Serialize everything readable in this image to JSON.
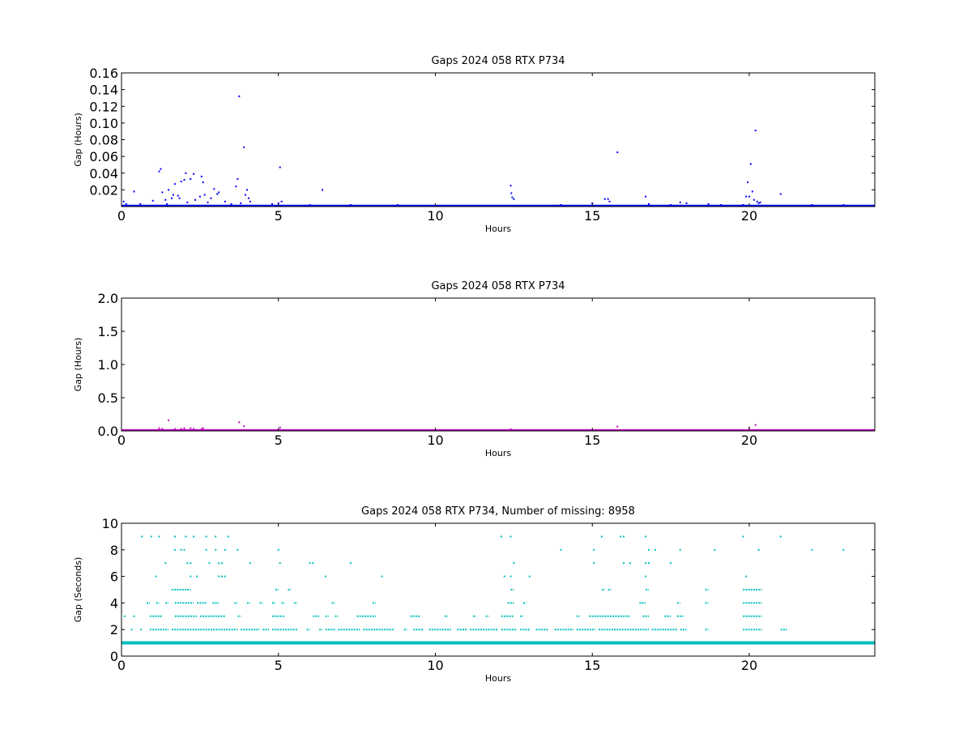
{
  "chart_data": [
    {
      "type": "scatter",
      "title": "Gaps 2024 058 RTX  P734",
      "xlabel": "Hours",
      "ylabel": "Gap (Hours)",
      "xlim": [
        0,
        24
      ],
      "ylim": [
        0,
        0.16
      ],
      "xticks": [
        "0",
        "5",
        "10",
        "15",
        "20"
      ],
      "yticks": [
        "0.02",
        "0.04",
        "0.06",
        "0.08",
        "0.10",
        "0.12",
        "0.14",
        "0.16"
      ],
      "ytick_values": [
        0.02,
        0.04,
        0.06,
        0.08,
        0.1,
        0.12,
        0.14,
        0.16
      ],
      "color": "#0000ff",
      "baseline": {
        "y": 0.0003,
        "x_from": 0,
        "x_to": 24
      },
      "points": [
        [
          0.07,
          0.006
        ],
        [
          0.15,
          0.003
        ],
        [
          0.4,
          0.018
        ],
        [
          0.6,
          0.003
        ],
        [
          1.0,
          0.007
        ],
        [
          1.2,
          0.042
        ],
        [
          1.25,
          0.045
        ],
        [
          1.3,
          0.017
        ],
        [
          1.4,
          0.008
        ],
        [
          1.45,
          0.003
        ],
        [
          1.5,
          0.02
        ],
        [
          1.6,
          0.01
        ],
        [
          1.65,
          0.014
        ],
        [
          1.7,
          0.027
        ],
        [
          1.8,
          0.013
        ],
        [
          1.85,
          0.01
        ],
        [
          1.9,
          0.03
        ],
        [
          2.0,
          0.032
        ],
        [
          2.05,
          0.04
        ],
        [
          2.1,
          0.005
        ],
        [
          2.2,
          0.033
        ],
        [
          2.3,
          0.039
        ],
        [
          2.35,
          0.008
        ],
        [
          2.5,
          0.012
        ],
        [
          2.55,
          0.036
        ],
        [
          2.6,
          0.029
        ],
        [
          2.65,
          0.014
        ],
        [
          2.75,
          0.005
        ],
        [
          2.85,
          0.01
        ],
        [
          2.95,
          0.021
        ],
        [
          3.05,
          0.015
        ],
        [
          3.1,
          0.017
        ],
        [
          3.3,
          0.006
        ],
        [
          3.5,
          0.003
        ],
        [
          3.65,
          0.024
        ],
        [
          3.7,
          0.033
        ],
        [
          3.75,
          0.132
        ],
        [
          3.8,
          0.004
        ],
        [
          3.9,
          0.071
        ],
        [
          3.95,
          0.014
        ],
        [
          4.0,
          0.02
        ],
        [
          4.05,
          0.01
        ],
        [
          4.1,
          0.006
        ],
        [
          4.8,
          0.003
        ],
        [
          5.0,
          0.004
        ],
        [
          5.05,
          0.047
        ],
        [
          5.1,
          0.006
        ],
        [
          6.0,
          0.002
        ],
        [
          6.4,
          0.02
        ],
        [
          7.3,
          0.002
        ],
        [
          8.8,
          0.002
        ],
        [
          12.4,
          0.025
        ],
        [
          12.42,
          0.016
        ],
        [
          12.45,
          0.011
        ],
        [
          12.5,
          0.009
        ],
        [
          14.0,
          0.002
        ],
        [
          15.0,
          0.004
        ],
        [
          15.4,
          0.009
        ],
        [
          15.5,
          0.009
        ],
        [
          15.55,
          0.006
        ],
        [
          15.8,
          0.065
        ],
        [
          16.7,
          0.012
        ],
        [
          16.8,
          0.003
        ],
        [
          17.5,
          0.002
        ],
        [
          17.8,
          0.005
        ],
        [
          18.0,
          0.004
        ],
        [
          18.7,
          0.003
        ],
        [
          19.1,
          0.002
        ],
        [
          19.8,
          0.002
        ],
        [
          19.9,
          0.012
        ],
        [
          19.95,
          0.029
        ],
        [
          20.0,
          0.012
        ],
        [
          20.05,
          0.051
        ],
        [
          20.1,
          0.018
        ],
        [
          20.15,
          0.008
        ],
        [
          20.2,
          0.091
        ],
        [
          20.25,
          0.006
        ],
        [
          20.3,
          0.004
        ],
        [
          20.35,
          0.005
        ],
        [
          21.0,
          0.015
        ],
        [
          22.0,
          0.002
        ],
        [
          23.0,
          0.002
        ]
      ]
    },
    {
      "type": "scatter",
      "title": "Gaps 2024 058 RTX  P734",
      "xlabel": "Hours",
      "ylabel": "Gap (Hours)",
      "xlim": [
        0,
        24
      ],
      "ylim": [
        0,
        2.0
      ],
      "xticks": [
        "0",
        "5",
        "10",
        "15",
        "20"
      ],
      "yticks": [
        "0.0",
        "0.5",
        "1.0",
        "1.5",
        "2.0"
      ],
      "ytick_values": [
        0,
        0.5,
        1.0,
        1.5,
        2.0
      ],
      "color": "#bf00bf",
      "baseline": {
        "y": 0.002,
        "x_from": 0,
        "x_to": 24
      },
      "points": [
        [
          1.2,
          0.04
        ],
        [
          1.3,
          0.03
        ],
        [
          1.5,
          0.16
        ],
        [
          1.7,
          0.03
        ],
        [
          1.9,
          0.03
        ],
        [
          2.0,
          0.04
        ],
        [
          2.2,
          0.04
        ],
        [
          2.3,
          0.03
        ],
        [
          2.55,
          0.03
        ],
        [
          2.6,
          0.04
        ],
        [
          3.75,
          0.13
        ],
        [
          3.9,
          0.07
        ],
        [
          5.05,
          0.05
        ],
        [
          12.4,
          0.025
        ],
        [
          15.8,
          0.065
        ],
        [
          20.0,
          0.05
        ],
        [
          20.2,
          0.09
        ]
      ]
    },
    {
      "type": "scatter",
      "title": "Gaps 2024 058 RTX  P734, Number of missing: 8958",
      "xlabel": "Hours",
      "ylabel": "Gap (Seconds)",
      "xlim": [
        0,
        24
      ],
      "ylim": [
        0,
        10
      ],
      "xticks": [
        "0",
        "5",
        "10",
        "15",
        "20"
      ],
      "yticks": [
        "0",
        "2",
        "4",
        "6",
        "8",
        "10"
      ],
      "ytick_values": [
        0,
        2,
        4,
        6,
        8,
        10
      ],
      "color": "#00bfbf",
      "baseline": {
        "y": 1,
        "x_from": 0,
        "x_to": 24
      },
      "row_segments": [
        {
          "y": 2,
          "segments": [
            [
              0.3,
              0.35
            ],
            [
              0.6,
              0.65
            ],
            [
              0.9,
              1.5
            ],
            [
              1.6,
              3.7
            ],
            [
              3.8,
              4.4
            ],
            [
              4.5,
              4.7
            ],
            [
              4.8,
              5.6
            ],
            [
              5.9,
              6.0
            ],
            [
              6.3,
              6.4
            ],
            [
              6.5,
              6.8
            ],
            [
              6.9,
              7.6
            ],
            [
              7.7,
              8.7
            ],
            [
              9.0,
              9.1
            ],
            [
              9.3,
              9.6
            ],
            [
              9.8,
              10.5
            ],
            [
              10.7,
              11.0
            ],
            [
              11.1,
              12.0
            ],
            [
              12.1,
              12.6
            ],
            [
              12.7,
              13.0
            ],
            [
              13.2,
              13.6
            ],
            [
              13.8,
              14.4
            ],
            [
              14.5,
              15.1
            ],
            [
              15.2,
              16.8
            ],
            [
              16.9,
              17.7
            ],
            [
              17.8,
              18.0
            ],
            [
              18.6,
              18.7
            ],
            [
              19.8,
              20.4
            ],
            [
              21.0,
              21.2
            ]
          ]
        },
        {
          "y": 3,
          "segments": [
            [
              0.9,
              1.3
            ],
            [
              1.7,
              2.4
            ],
            [
              2.5,
              3.3
            ],
            [
              3.7,
              3.8
            ],
            [
              4.8,
              5.2
            ],
            [
              6.1,
              6.3
            ],
            [
              6.5,
              6.6
            ],
            [
              6.8,
              6.9
            ],
            [
              7.5,
              8.1
            ],
            [
              9.2,
              9.5
            ],
            [
              10.3,
              10.4
            ],
            [
              11.2,
              11.3
            ],
            [
              11.6,
              11.7
            ],
            [
              12.1,
              12.5
            ],
            [
              12.7,
              12.8
            ],
            [
              14.5,
              14.6
            ],
            [
              14.9,
              16.2
            ],
            [
              16.6,
              16.8
            ],
            [
              17.3,
              17.5
            ],
            [
              17.7,
              17.9
            ],
            [
              19.8,
              20.4
            ]
          ]
        },
        {
          "y": 4,
          "segments": [
            [
              0.8,
              0.9
            ],
            [
              1.1,
              1.2
            ],
            [
              1.4,
              1.5
            ],
            [
              1.7,
              2.3
            ],
            [
              2.4,
              2.7
            ],
            [
              2.9,
              3.1
            ],
            [
              3.6,
              3.7
            ],
            [
              4.0,
              4.1
            ],
            [
              4.4,
              4.5
            ],
            [
              4.8,
              4.9
            ],
            [
              5.1,
              5.2
            ],
            [
              5.5,
              5.6
            ],
            [
              6.7,
              6.8
            ],
            [
              8.0,
              8.1
            ],
            [
              12.3,
              12.5
            ],
            [
              12.8,
              12.9
            ],
            [
              16.5,
              16.7
            ],
            [
              17.7,
              17.8
            ],
            [
              18.6,
              18.7
            ],
            [
              19.8,
              20.4
            ]
          ]
        },
        {
          "y": 5,
          "segments": [
            [
              1.6,
              2.2
            ],
            [
              4.9,
              5.0
            ],
            [
              5.3,
              5.4
            ],
            [
              12.4,
              12.5
            ],
            [
              15.3,
              15.4
            ],
            [
              15.5,
              15.6
            ],
            [
              16.7,
              16.8
            ],
            [
              18.6,
              18.7
            ],
            [
              19.8,
              20.4
            ]
          ]
        }
      ],
      "points": [
        [
          0.1,
          3
        ],
        [
          0.4,
          3
        ],
        [
          0.65,
          9
        ],
        [
          0.95,
          9
        ],
        [
          1.2,
          9
        ],
        [
          1.7,
          9
        ],
        [
          2.05,
          9
        ],
        [
          2.3,
          9
        ],
        [
          1.1,
          6
        ],
        [
          2.2,
          6
        ],
        [
          2.4,
          6
        ],
        [
          3.1,
          6
        ],
        [
          3.2,
          6
        ],
        [
          3.3,
          6
        ],
        [
          6.5,
          6
        ],
        [
          8.3,
          6
        ],
        [
          12.2,
          6
        ],
        [
          12.4,
          6
        ],
        [
          13.0,
          6
        ],
        [
          16.7,
          6
        ],
        [
          19.9,
          6
        ],
        [
          1.4,
          7
        ],
        [
          2.1,
          7
        ],
        [
          2.2,
          7
        ],
        [
          2.8,
          7
        ],
        [
          3.1,
          7
        ],
        [
          3.2,
          7
        ],
        [
          4.1,
          7
        ],
        [
          5.05,
          7
        ],
        [
          6.0,
          7
        ],
        [
          6.1,
          7
        ],
        [
          7.3,
          7
        ],
        [
          12.5,
          7
        ],
        [
          15.05,
          7
        ],
        [
          16.0,
          7
        ],
        [
          16.2,
          7
        ],
        [
          16.7,
          7
        ],
        [
          16.8,
          7
        ],
        [
          17.5,
          7
        ],
        [
          1.7,
          8
        ],
        [
          1.9,
          8
        ],
        [
          2.0,
          8
        ],
        [
          2.7,
          8
        ],
        [
          3.0,
          8
        ],
        [
          3.3,
          8
        ],
        [
          3.7,
          8
        ],
        [
          5.0,
          8
        ],
        [
          14.0,
          8
        ],
        [
          15.05,
          8
        ],
        [
          16.8,
          8
        ],
        [
          17.0,
          8
        ],
        [
          17.8,
          8
        ],
        [
          18.9,
          8
        ],
        [
          20.3,
          8
        ],
        [
          22.0,
          8
        ],
        [
          23.0,
          8
        ],
        [
          2.7,
          9
        ],
        [
          3.0,
          9
        ],
        [
          3.4,
          9
        ],
        [
          12.1,
          9
        ],
        [
          12.4,
          9
        ],
        [
          15.3,
          9
        ],
        [
          15.9,
          9
        ],
        [
          16.0,
          9
        ],
        [
          16.7,
          9
        ],
        [
          19.8,
          9
        ],
        [
          21.0,
          9
        ]
      ]
    }
  ]
}
